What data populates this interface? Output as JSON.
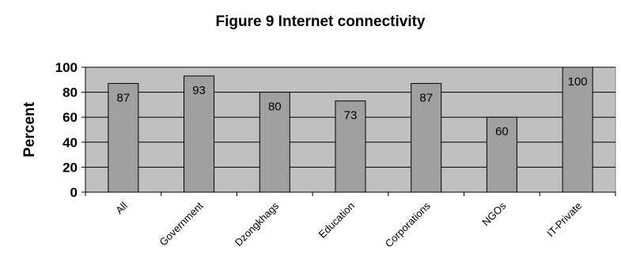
{
  "chart_data": {
    "type": "bar",
    "title": "Figure 9 Internet connectivity",
    "ylabel": "Percent",
    "xlabel": "",
    "categories": [
      "All",
      "Government",
      "Dzongkhags",
      "Education",
      "Corporations",
      "NGOs",
      "IT-Private"
    ],
    "values": [
      87,
      93,
      80,
      73,
      87,
      60,
      100
    ],
    "data_labels": [
      "87",
      "93",
      "80",
      "73",
      "87",
      "60",
      "100"
    ],
    "ylim": [
      0,
      100
    ],
    "yticks": [
      "0",
      "20",
      "40",
      "60",
      "80",
      "100"
    ],
    "grid": true,
    "legend": "none",
    "colors": {
      "plot_bg": "#c0c0c0",
      "bar_fill": "#a0a0a0",
      "bar_stroke": "#000000"
    }
  }
}
